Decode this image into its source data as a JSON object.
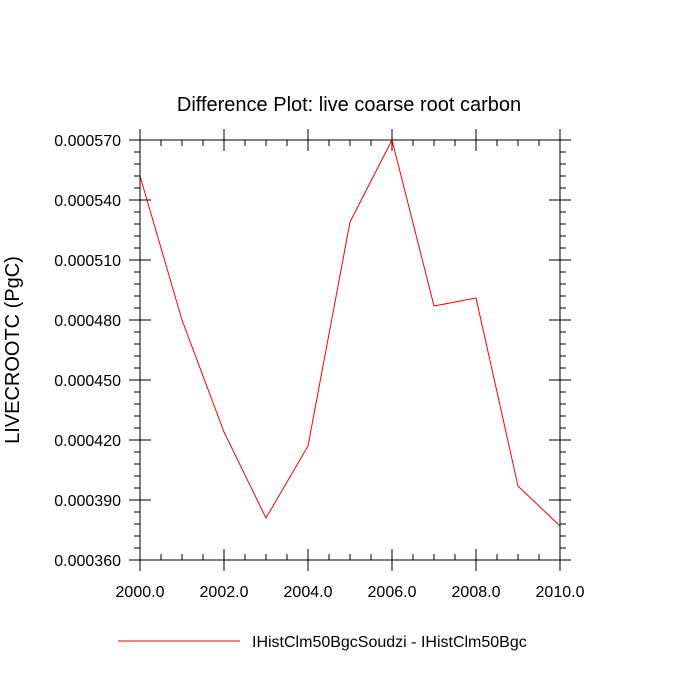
{
  "chart_data": {
    "type": "line",
    "title": "Difference Plot: live coarse root carbon",
    "xlabel": "",
    "ylabel": "LIVECROOTC  (PgC)",
    "xlim": [
      2000,
      2010
    ],
    "ylim": [
      0.00036,
      0.00057
    ],
    "x_ticks": [
      2000,
      2002,
      2004,
      2006,
      2008,
      2010
    ],
    "x_tick_labels": [
      "2000.0",
      "2002.0",
      "2004.0",
      "2006.0",
      "2008.0",
      "2010.0"
    ],
    "y_ticks": [
      0.00036,
      0.00039,
      0.00042,
      0.00045,
      0.00048,
      0.00051,
      0.00054,
      0.00057
    ],
    "y_tick_labels": [
      "0.000360",
      "0.000390",
      "0.000420",
      "0.000450",
      "0.000480",
      "0.000510",
      "0.000540",
      "0.000570"
    ],
    "grid": false,
    "legend_position": "bottom",
    "series": [
      {
        "name": "IHistClm50BgcSoudzi - IHistClm50Bgc",
        "color": "#ff0000",
        "x": [
          2000,
          2001,
          2002,
          2003,
          2004,
          2005,
          2006,
          2007,
          2008,
          2009,
          2010
        ],
        "y": [
          0.000552,
          0.00048,
          0.000424,
          0.000381,
          0.000417,
          0.000529,
          0.00057,
          0.000487,
          0.000491,
          0.000397,
          0.000377
        ]
      }
    ]
  }
}
